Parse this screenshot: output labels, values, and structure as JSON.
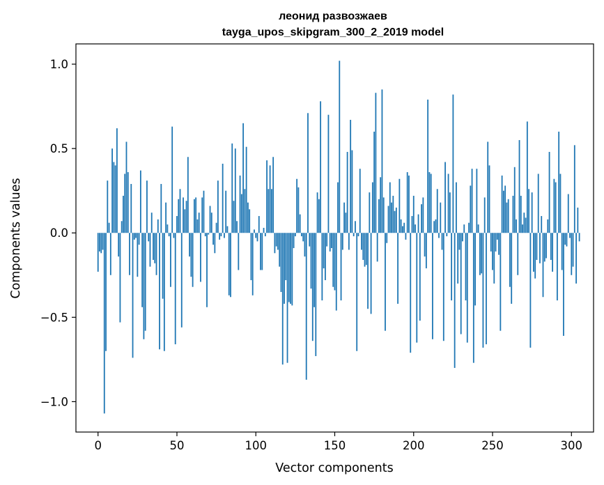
{
  "chart_data": {
    "type": "bar",
    "title": "леонид развозжаев",
    "subtitle": "tayga_upos_skipgram_300_2_2019 model",
    "xlabel": "Vector components",
    "ylabel": "Components values",
    "xlim": [
      -14,
      314
    ],
    "ylim": [
      -1.18,
      1.12
    ],
    "xticks": [
      0,
      50,
      100,
      150,
      200,
      250,
      300
    ],
    "xtick_labels": [
      "0",
      "50",
      "100",
      "150",
      "200",
      "250",
      "300"
    ],
    "yticks": [
      -1.0,
      -0.5,
      0.0,
      0.5,
      1.0
    ],
    "ytick_labels": [
      "−1.0",
      "−0.5",
      "0.0",
      "0.5",
      "1.0"
    ],
    "bar_color": "#1f77b4",
    "grid": false,
    "values": [
      -0.23,
      -0.11,
      -0.12,
      -0.1,
      -1.07,
      -0.7,
      0.31,
      0.06,
      -0.25,
      0.5,
      0.42,
      0.4,
      0.62,
      -0.14,
      -0.53,
      0.07,
      0.22,
      0.35,
      0.54,
      0.36,
      -0.25,
      0.29,
      -0.74,
      -0.04,
      -0.03,
      -0.26,
      -0.07,
      0.37,
      -0.44,
      -0.63,
      -0.58,
      0.31,
      -0.05,
      -0.2,
      0.12,
      -0.16,
      -0.18,
      -0.25,
      0.08,
      -0.69,
      0.29,
      -0.39,
      -0.7,
      0.18,
      0.05,
      -0.02,
      -0.32,
      0.63,
      -0.03,
      -0.66,
      0.1,
      0.2,
      0.26,
      -0.56,
      0.21,
      0.14,
      0.19,
      0.45,
      -0.14,
      -0.26,
      -0.32,
      0.2,
      0.21,
      0.08,
      0.12,
      -0.29,
      0.21,
      0.25,
      -0.02,
      -0.44,
      -0.01,
      0.16,
      0.12,
      -0.07,
      -0.12,
      0.06,
      0.31,
      -0.04,
      -0.02,
      0.41,
      -0.03,
      0.25,
      0.04,
      -0.37,
      -0.38,
      0.53,
      0.19,
      0.5,
      0.07,
      -0.22,
      0.34,
      0.23,
      0.65,
      0.26,
      0.51,
      0.18,
      0.14,
      -0.28,
      -0.37,
      0.02,
      -0.03,
      -0.05,
      0.1,
      -0.22,
      -0.22,
      0.03,
      -0.02,
      0.43,
      0.26,
      0.4,
      0.26,
      0.45,
      -0.12,
      -0.08,
      -0.1,
      -0.2,
      -0.35,
      -0.78,
      -0.42,
      -0.28,
      -0.77,
      -0.41,
      -0.42,
      -0.43,
      -0.09,
      -0.02,
      0.32,
      0.27,
      0.11,
      -0.02,
      -0.05,
      -0.14,
      -0.87,
      0.71,
      -0.08,
      -0.33,
      -0.64,
      -0.44,
      -0.73,
      0.24,
      0.2,
      0.78,
      -0.4,
      -0.21,
      -0.28,
      -0.08,
      0.7,
      -0.11,
      -0.09,
      -0.32,
      -0.34,
      -0.46,
      0.3,
      1.02,
      -0.4,
      -0.1,
      0.18,
      0.12,
      0.48,
      -0.1,
      0.67,
      0.49,
      -0.02,
      0.07,
      -0.7,
      -0.02,
      0.38,
      -0.1,
      -0.16,
      -0.2,
      -0.19,
      -0.45,
      0.24,
      -0.48,
      0.3,
      0.6,
      0.83,
      -0.17,
      0.2,
      0.33,
      0.85,
      0.21,
      -0.58,
      -0.06,
      0.16,
      0.3,
      0.18,
      0.22,
      0.13,
      0.15,
      -0.42,
      0.32,
      0.08,
      0.04,
      0.06,
      -0.04,
      0.36,
      0.34,
      -0.71,
      0.1,
      0.22,
      0.05,
      -0.65,
      0.11,
      -0.52,
      0.17,
      0.21,
      -0.14,
      -0.21,
      0.79,
      0.36,
      0.35,
      -0.63,
      0.07,
      0.08,
      0.26,
      -0.03,
      0.18,
      -0.1,
      -0.64,
      0.42,
      -0.02,
      0.35,
      0.24,
      -0.4,
      0.82,
      -0.8,
      0.3,
      -0.3,
      -0.1,
      -0.6,
      -0.05,
      0.05,
      -0.4,
      -0.65,
      0.06,
      0.28,
      0.38,
      -0.77,
      -0.43,
      0.38,
      0.05,
      -0.25,
      -0.24,
      -0.68,
      0.21,
      -0.66,
      0.54,
      0.4,
      -0.11,
      -0.22,
      -0.3,
      -0.11,
      -0.04,
      -0.13,
      -0.58,
      0.34,
      0.25,
      0.28,
      0.18,
      0.2,
      -0.32,
      -0.42,
      0.22,
      0.39,
      0.08,
      -0.25,
      0.55,
      0.22,
      0.05,
      0.12,
      0.09,
      0.66,
      0.26,
      -0.68,
      0.24,
      -0.23,
      -0.27,
      -0.16,
      0.35,
      -0.18,
      0.1,
      -0.38,
      -0.17,
      -0.15,
      0.08,
      0.48,
      -0.16,
      -0.23,
      0.32,
      0.3,
      -0.4,
      0.6,
      0.35,
      -0.22,
      -0.61,
      -0.07,
      -0.08,
      0.23,
      -0.03,
      -0.25,
      -0.2,
      0.52,
      -0.3,
      0.15,
      -0.05
    ]
  }
}
